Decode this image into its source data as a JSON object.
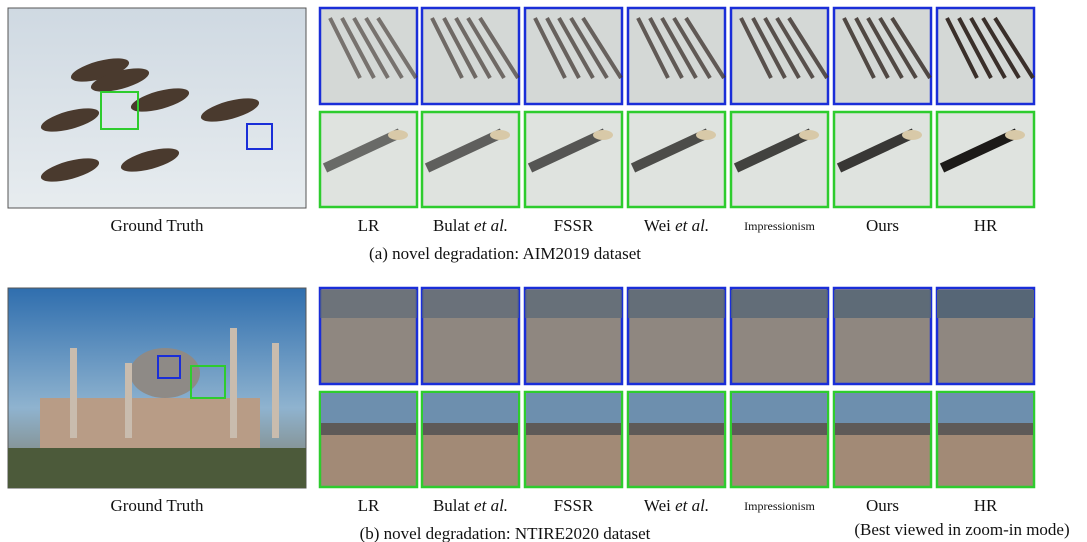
{
  "panels": [
    {
      "ground_truth_label": "Ground Truth",
      "methods": [
        {
          "name": "LR"
        },
        {
          "name": "Bulat",
          "italic": "et al."
        },
        {
          "name": "FSSR"
        },
        {
          "name": "Wei",
          "italic": "et al."
        },
        {
          "name": "Impressionism"
        },
        {
          "name": "Ours"
        },
        {
          "name": "HR"
        }
      ],
      "caption": "(a) novel degradation: AIM2019 dataset"
    },
    {
      "ground_truth_label": "Ground Truth",
      "methods": [
        {
          "name": "LR"
        },
        {
          "name": "Bulat",
          "italic": "et al."
        },
        {
          "name": "FSSR"
        },
        {
          "name": "Wei",
          "italic": "et al."
        },
        {
          "name": "Impressionism"
        },
        {
          "name": "Ours"
        },
        {
          "name": "HR"
        }
      ],
      "caption": "(b) novel degradation: NTIRE2020 dataset"
    }
  ],
  "note": "(Best viewed in zoom-in mode)"
}
